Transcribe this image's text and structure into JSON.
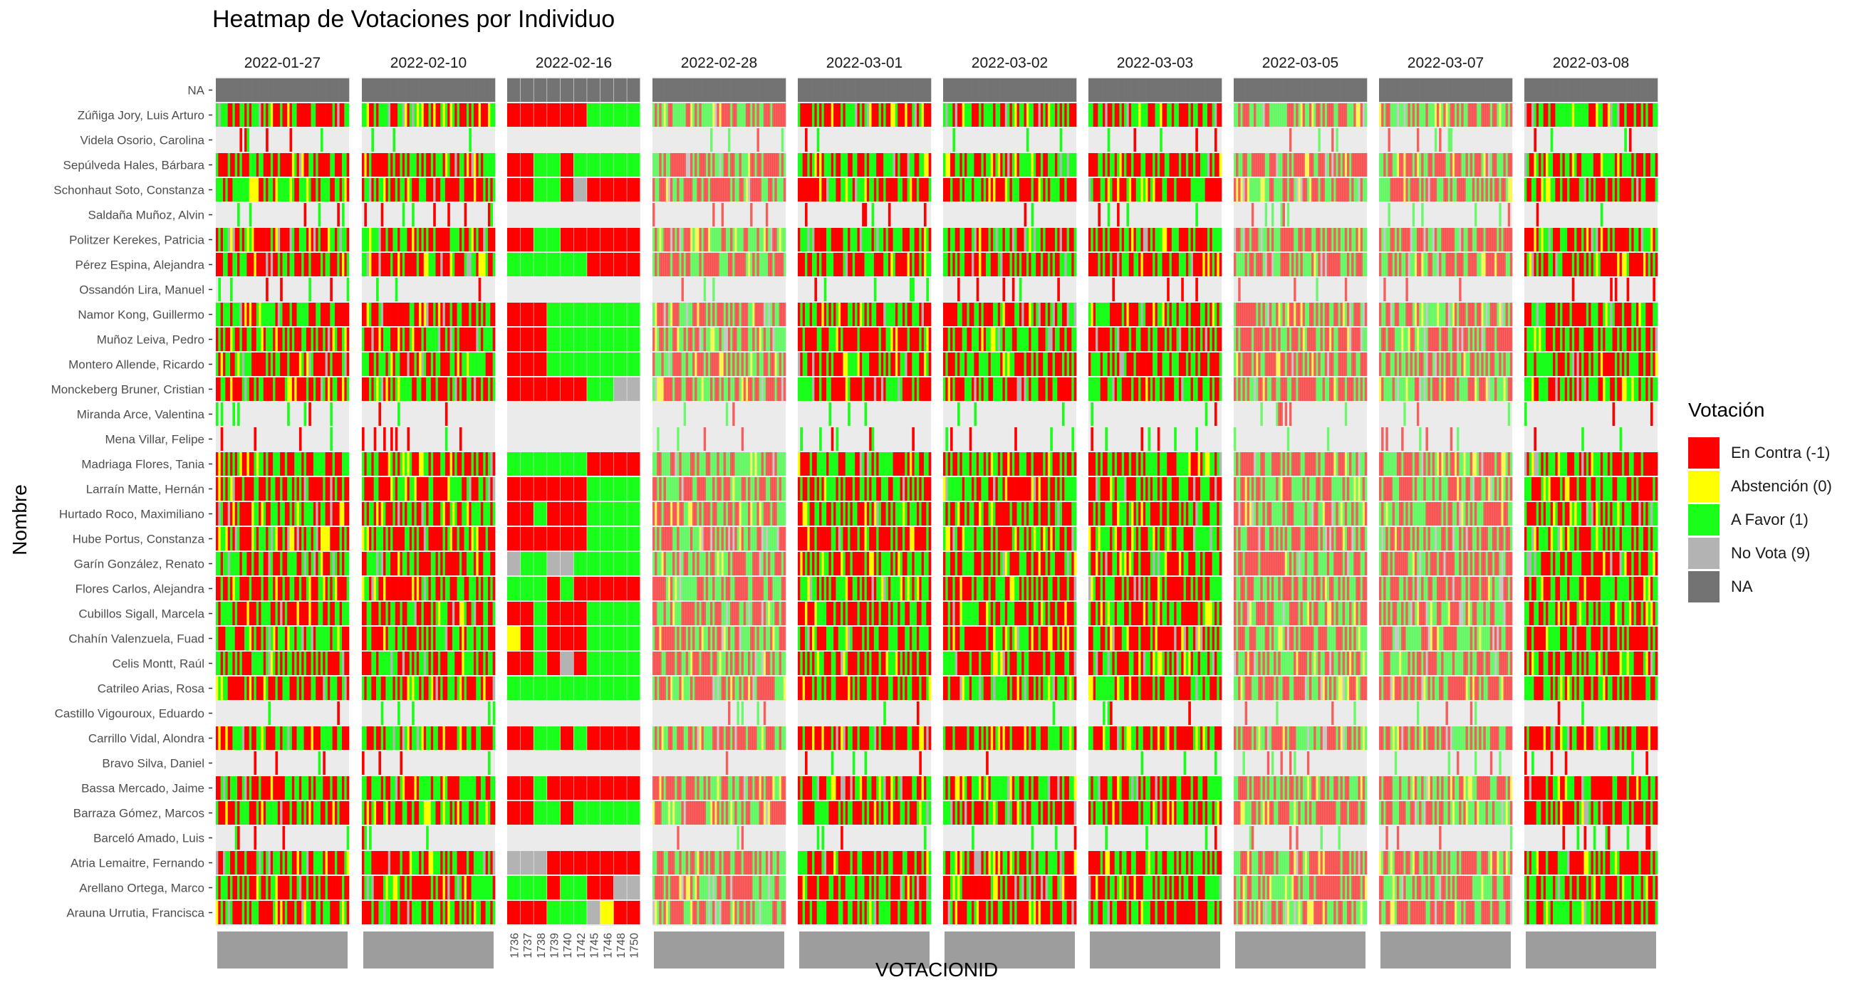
{
  "chart_data": {
    "type": "heatmap",
    "title": "Heatmap de Votaciones por Individuo",
    "xlabel": "VOTACIONID",
    "ylabel": "Nombre",
    "legend": {
      "title": "Votación",
      "position": "right",
      "items": [
        {
          "label": "En Contra (-1)",
          "value": -1,
          "color": "#ff0000"
        },
        {
          "label": "Abstención (0)",
          "value": 0,
          "color": "#ffff00"
        },
        {
          "label": "A Favor (1)",
          "value": 1,
          "color": "#1aff1a"
        },
        {
          "label": "No Vota (9)",
          "value": 9,
          "color": "#b3b3b3"
        },
        {
          "label": "NA",
          "value": null,
          "color": "#737373"
        }
      ]
    },
    "facets": [
      "2022-01-27",
      "2022-02-10",
      "2022-02-16",
      "2022-02-28",
      "2022-03-01",
      "2022-03-02",
      "2022-03-03",
      "2022-03-05",
      "2022-03-07",
      "2022-03-08"
    ],
    "rows": [
      "NA",
      "Zúñiga Jory, Luis Arturo",
      "Videla Osorio, Carolina",
      "Sepúlveda Hales, Bárbara",
      "Schonhaut Soto, Constanza",
      "Saldaña Muñoz, Alvin",
      "Politzer Kerekes, Patricia",
      "Pérez Espina, Alejandra",
      "Ossandón Lira, Manuel",
      "Namor Kong, Guillermo",
      "Muñoz Leiva, Pedro",
      "Montero Allende, Ricardo",
      "Monckeberg Bruner, Cristian",
      "Miranda Arce, Valentina",
      "Mena Villar, Felipe",
      "Madriaga Flores, Tania",
      "Larraín Matte, Hernán",
      "Hurtado Roco, Maximiliano",
      "Hube Portus, Constanza",
      "Garín González, Renato",
      "Flores Carlos, Alejandra",
      "Cubillos Sigall, Marcela",
      "Chahín Valenzuela, Fuad",
      "Celis Montt, Raúl",
      "Catrileo Arias, Rosa",
      "Castillo Vigouroux, Eduardo",
      "Carrillo Vidal, Alondra",
      "Bravo Silva, Daniel",
      "Bassa Mercado, Jaime",
      "Barraza Gómez, Marcos",
      "Barceló Amado, Luis",
      "Atria Lemaitre, Fernando",
      "Arellano Ortega, Marco",
      "Arauna Urrutia, Francisca"
    ],
    "facet_2022_02_16": {
      "votacion_ids": [
        "1736",
        "1737",
        "1738",
        "1739",
        "1740",
        "1742",
        "1745",
        "1746",
        "1748",
        "1750"
      ],
      "votes": {
        "NA": [
          null,
          null,
          null,
          null,
          null,
          null,
          null,
          null,
          null,
          null
        ],
        "Zúñiga Jory, Luis Arturo": [
          -1,
          -1,
          -1,
          -1,
          -1,
          -1,
          1,
          1,
          1,
          1
        ],
        "Videla Osorio, Carolina": [
          null,
          null,
          null,
          null,
          null,
          null,
          null,
          null,
          null,
          null
        ],
        "Sepúlveda Hales, Bárbara": [
          -1,
          -1,
          1,
          1,
          -1,
          1,
          1,
          1,
          1,
          1
        ],
        "Schonhaut Soto, Constanza": [
          -1,
          -1,
          1,
          1,
          -1,
          9,
          -1,
          -1,
          -1,
          -1
        ],
        "Saldaña Muñoz, Alvin": [
          null,
          null,
          null,
          null,
          null,
          null,
          null,
          null,
          null,
          null
        ],
        "Politzer Kerekes, Patricia": [
          -1,
          -1,
          1,
          1,
          -1,
          -1,
          -1,
          -1,
          -1,
          -1
        ],
        "Pérez Espina, Alejandra": [
          1,
          1,
          1,
          1,
          1,
          1,
          -1,
          -1,
          -1,
          -1
        ],
        "Ossandón Lira, Manuel": [
          null,
          null,
          null,
          null,
          null,
          null,
          null,
          null,
          null,
          null
        ],
        "Namor Kong, Guillermo": [
          -1,
          -1,
          -1,
          1,
          1,
          1,
          1,
          1,
          1,
          1
        ],
        "Muñoz Leiva, Pedro": [
          -1,
          -1,
          -1,
          1,
          1,
          1,
          1,
          1,
          1,
          1
        ],
        "Montero Allende, Ricardo": [
          -1,
          -1,
          -1,
          1,
          1,
          1,
          1,
          1,
          1,
          1
        ],
        "Monckeberg Bruner, Cristian": [
          -1,
          -1,
          -1,
          -1,
          -1,
          -1,
          1,
          1,
          9,
          9
        ],
        "Miranda Arce, Valentina": [
          null,
          null,
          null,
          null,
          null,
          null,
          null,
          null,
          null,
          null
        ],
        "Mena Villar, Felipe": [
          null,
          null,
          null,
          null,
          null,
          null,
          null,
          null,
          null,
          null
        ],
        "Madriaga Flores, Tania": [
          1,
          1,
          1,
          1,
          1,
          1,
          -1,
          -1,
          -1,
          -1
        ],
        "Larraín Matte, Hernán": [
          -1,
          -1,
          -1,
          -1,
          -1,
          -1,
          1,
          1,
          1,
          1
        ],
        "Hurtado Roco, Maximiliano": [
          -1,
          -1,
          1,
          -1,
          -1,
          -1,
          1,
          1,
          1,
          1
        ],
        "Hube Portus, Constanza": [
          -1,
          -1,
          -1,
          -1,
          -1,
          -1,
          1,
          1,
          1,
          1
        ],
        "Garín González, Renato": [
          9,
          1,
          1,
          9,
          9,
          1,
          1,
          1,
          1,
          1
        ],
        "Flores Carlos, Alejandra": [
          1,
          1,
          1,
          -1,
          1,
          -1,
          -1,
          -1,
          -1,
          -1
        ],
        "Cubillos Sigall, Marcela": [
          -1,
          -1,
          1,
          -1,
          -1,
          -1,
          1,
          1,
          1,
          1
        ],
        "Chahín Valenzuela, Fuad": [
          0,
          -1,
          1,
          -1,
          -1,
          -1,
          1,
          1,
          1,
          1
        ],
        "Celis Montt, Raúl": [
          -1,
          -1,
          1,
          -1,
          9,
          -1,
          1,
          1,
          1,
          1
        ],
        "Catrileo Arias, Rosa": [
          1,
          1,
          1,
          1,
          1,
          1,
          1,
          1,
          1,
          1
        ],
        "Castillo Vigouroux, Eduardo": [
          null,
          null,
          null,
          null,
          null,
          null,
          null,
          null,
          null,
          null
        ],
        "Carrillo Vidal, Alondra": [
          -1,
          -1,
          1,
          1,
          -1,
          1,
          -1,
          -1,
          -1,
          -1
        ],
        "Bravo Silva, Daniel": [
          null,
          null,
          null,
          null,
          null,
          null,
          null,
          null,
          null,
          null
        ],
        "Bassa Mercado, Jaime": [
          -1,
          -1,
          1,
          -1,
          -1,
          -1,
          -1,
          -1,
          -1,
          -1
        ],
        "Barraza Gómez, Marcos": [
          -1,
          -1,
          1,
          1,
          -1,
          1,
          1,
          1,
          1,
          1
        ],
        "Barceló Amado, Luis": [
          null,
          null,
          null,
          null,
          null,
          null,
          null,
          null,
          null,
          null
        ],
        "Atria Lemaitre, Fernando": [
          9,
          9,
          9,
          -1,
          -1,
          -1,
          -1,
          -1,
          -1,
          -1
        ],
        "Arellano Ortega, Marco": [
          1,
          1,
          1,
          -1,
          1,
          1,
          -1,
          -1,
          9,
          9
        ],
        "Arauna Urrutia, Francisca": [
          -1,
          -1,
          -1,
          1,
          1,
          1,
          9,
          0,
          -1,
          -1
        ]
      }
    }
  }
}
